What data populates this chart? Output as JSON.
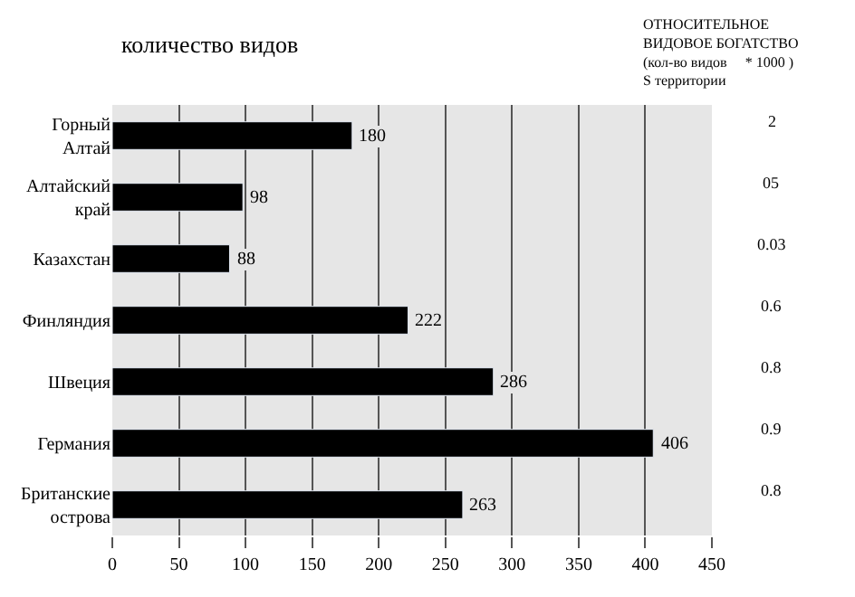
{
  "chart_data": {
    "type": "bar",
    "orientation": "horizontal",
    "title": "количество видов",
    "categories": [
      "Горный\nАлтай",
      "Алтайский\nкрай",
      "Казахстан",
      "Финляндия",
      "Швеция",
      "Германия",
      "Британские\nострова"
    ],
    "values": [
      180,
      98,
      88,
      222,
      286,
      406,
      263
    ],
    "color": "#000000",
    "data_labels": true,
    "xlim": [
      0,
      450
    ],
    "xticks": [
      0,
      50,
      100,
      150,
      200,
      250,
      300,
      350,
      400,
      450
    ],
    "grid": "x",
    "annotations": [
      "ОТНОСИТЕЛЬНОЕ\nВИДОВОЕ БОГАТСТВО\n(кол-во видов     * 1000 )\nS территории",
      "2",
      "05",
      "0.03",
      "0.6",
      "0.8",
      "0.9",
      "0.8"
    ]
  }
}
